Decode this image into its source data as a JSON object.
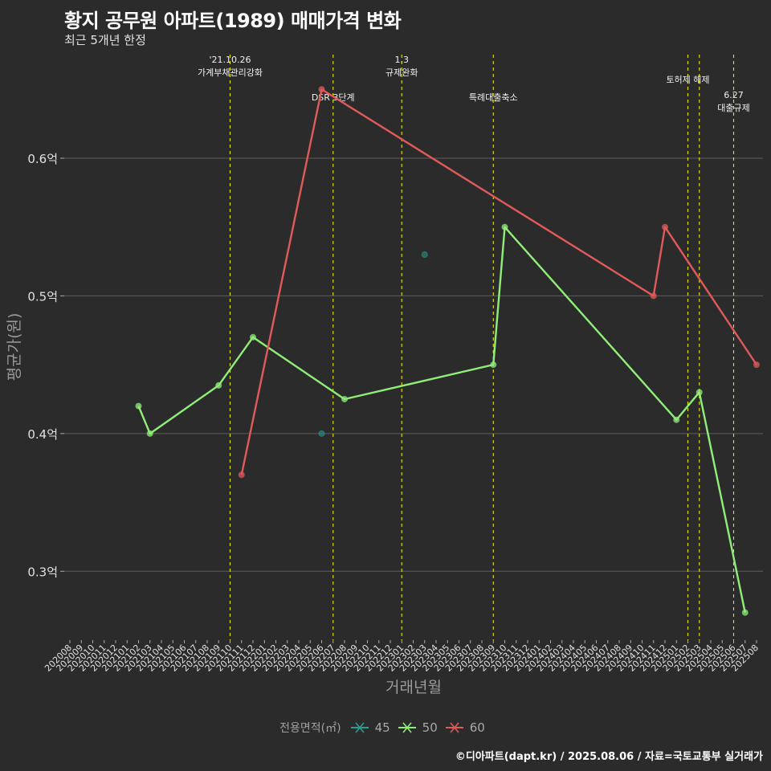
{
  "title": "황지 공무원 아파트(1989) 매매가격 변화",
  "subtitle": "최근 5개년 한정",
  "caption": "©디아파트(dapt.kr) / 2025.08.06 / 자료=국토교통부 실거래가",
  "colors": {
    "background": "#2b2b2c",
    "grid": "#5e5e5e",
    "event_line": "#e6e600",
    "s45": "#2a9d8f",
    "s50": "#90ee78",
    "s60": "#e05a5a"
  },
  "chart_data": {
    "type": "line",
    "xlabel": "거래년월",
    "ylabel": "평균가(원)",
    "ylim": [
      0.25,
      0.67
    ],
    "yticks": [
      0.3,
      0.4,
      0.5,
      0.6
    ],
    "ytick_labels": [
      "0.3억",
      "0.4억",
      "0.5억",
      "0.6억"
    ],
    "categories": [
      "202008",
      "202009",
      "202010",
      "202011",
      "202012",
      "202101",
      "202102",
      "202103",
      "202104",
      "202105",
      "202106",
      "202107",
      "202108",
      "202109",
      "202110",
      "202111",
      "202112",
      "202201",
      "202202",
      "202203",
      "202204",
      "202205",
      "202206",
      "202207",
      "202208",
      "202209",
      "202210",
      "202211",
      "202212",
      "202301",
      "202302",
      "202303",
      "202304",
      "202305",
      "202306",
      "202307",
      "202308",
      "202309",
      "202310",
      "202311",
      "202312",
      "202401",
      "202402",
      "202403",
      "202404",
      "202405",
      "202406",
      "202407",
      "202408",
      "202409",
      "202410",
      "202411",
      "202412",
      "202501",
      "202502",
      "202503",
      "202504",
      "202505",
      "202506",
      "202507",
      "202508"
    ],
    "legend_title": "전용면적(㎡)",
    "series": [
      {
        "name": "45",
        "color": "#2a9d8f",
        "line": false,
        "points": [
          [
            "202206",
            0.4
          ],
          [
            "202303",
            0.53
          ]
        ]
      },
      {
        "name": "50",
        "color": "#90ee78",
        "line": true,
        "points": [
          [
            "202102",
            0.42
          ],
          [
            "202103",
            0.4
          ],
          [
            "202109",
            0.435
          ],
          [
            "202112",
            0.47
          ],
          [
            "202208",
            0.425
          ],
          [
            "202309",
            0.45
          ],
          [
            "202310",
            0.55
          ],
          [
            "202501",
            0.41
          ],
          [
            "202503",
            0.43
          ],
          [
            "202507",
            0.27
          ]
        ]
      },
      {
        "name": "60",
        "color": "#e05a5a",
        "line": true,
        "points": [
          [
            "202111",
            0.37
          ],
          [
            "202206",
            0.65
          ],
          [
            "202411",
            0.5
          ],
          [
            "202412",
            0.55
          ],
          [
            "202508",
            0.45
          ]
        ]
      }
    ],
    "events": [
      {
        "x": "202110",
        "lines": [
          "'21.10.26",
          "가계부채관리강화"
        ],
        "row": 0
      },
      {
        "x": "202207",
        "lines": [
          "DSR 3단계"
        ],
        "row": 2
      },
      {
        "x": "202301",
        "lines": [
          "1.3",
          "규제완화"
        ],
        "row": 0
      },
      {
        "x": "202309",
        "lines": [
          "특례대출축소"
        ],
        "row": 2
      },
      {
        "x": "202502",
        "lines": [
          "토허제 해제"
        ],
        "row": 1
      },
      {
        "x": "202503",
        "lines": [],
        "row": 1
      },
      {
        "x": "202506",
        "lines": [
          "6.27",
          "대출규제"
        ],
        "row": 3
      }
    ]
  }
}
